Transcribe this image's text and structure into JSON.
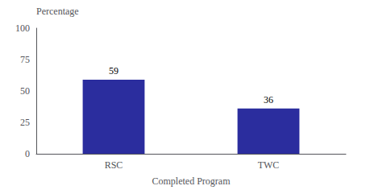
{
  "chart_data": {
    "type": "bar",
    "categories": [
      "RSC",
      "TWC"
    ],
    "values": [
      59,
      36
    ],
    "color": "#2B2D9E",
    "xlabel": "Completed Program",
    "ylabel": "Percentage",
    "ylim": [
      0,
      100
    ],
    "yticks": [
      0,
      25,
      50,
      75,
      100
    ],
    "grid": false,
    "data_labels": true
  }
}
